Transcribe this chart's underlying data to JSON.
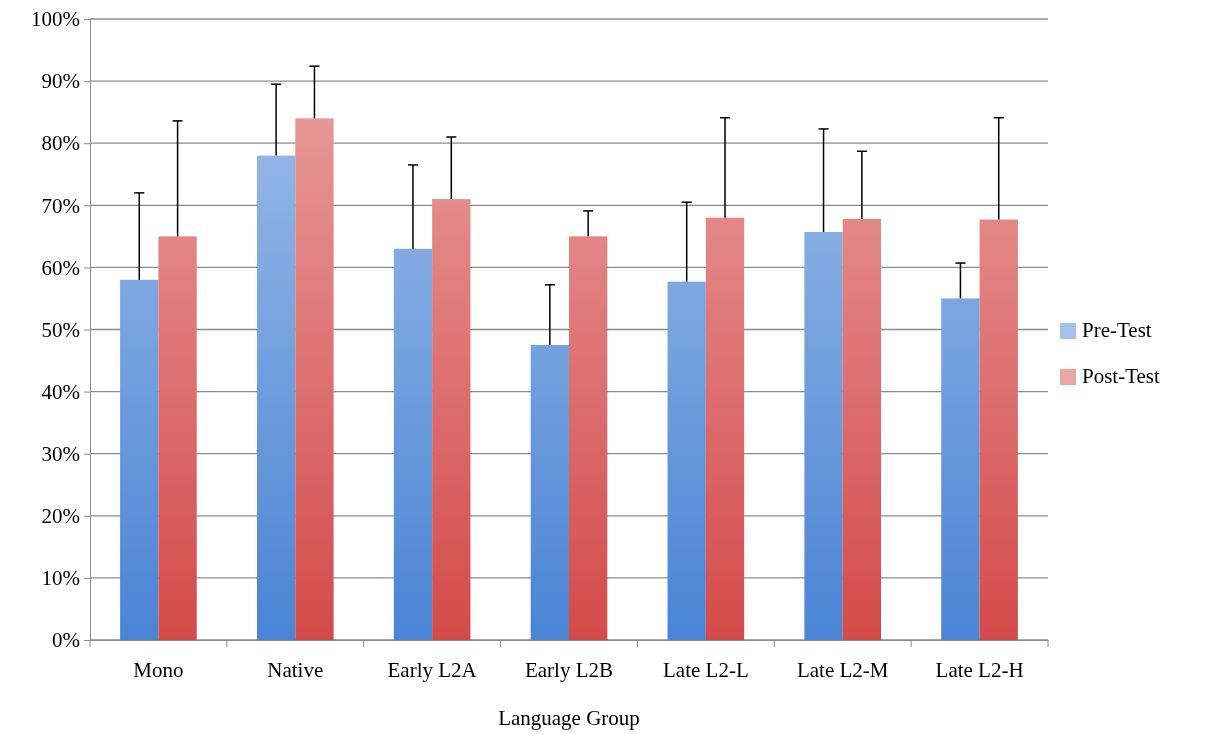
{
  "chart_data": {
    "type": "bar",
    "xlabel": "Language Group",
    "categories": [
      "Mono",
      "Native",
      "Early L2A",
      "Early L2B",
      "Late L2-L",
      "Late L2-M",
      "Late L2-H"
    ],
    "series": [
      {
        "name": "Pre-Test",
        "color": "#4a84d4",
        "values": [
          58,
          78,
          63,
          47.5,
          57.7,
          65.7,
          55
        ],
        "errors": [
          [
            58,
            72
          ],
          [
            78,
            89.5
          ],
          [
            63,
            76.5
          ],
          [
            47.5,
            57.2
          ],
          [
            57.7,
            70.5
          ],
          [
            65.7,
            82.3
          ],
          [
            55,
            60.7
          ]
        ]
      },
      {
        "name": "Post-Test",
        "color": "#d44a4a",
        "values": [
          65,
          84,
          71,
          65,
          68,
          67.8,
          67.7
        ],
        "errors": [
          [
            65,
            83.6
          ],
          [
            84,
            92.4
          ],
          [
            71,
            81
          ],
          [
            65,
            69.1
          ],
          [
            68,
            84.1
          ],
          [
            67.8,
            78.7
          ],
          [
            67.7,
            84.1
          ]
        ]
      }
    ],
    "ylim": [
      0,
      100
    ],
    "yticks": [
      {
        "value": 0,
        "label": "0%"
      },
      {
        "value": 10,
        "label": "10%"
      },
      {
        "value": 20,
        "label": "20%"
      },
      {
        "value": 30,
        "label": "30%"
      },
      {
        "value": 40,
        "label": "40%"
      },
      {
        "value": 50,
        "label": "50%"
      },
      {
        "value": 60,
        "label": "60%"
      },
      {
        "value": 70,
        "label": "70%"
      },
      {
        "value": 80,
        "label": "80%"
      },
      {
        "value": 90,
        "label": "90%"
      },
      {
        "value": 100,
        "label": "100%"
      }
    ],
    "grid": "y",
    "legend": "right"
  }
}
